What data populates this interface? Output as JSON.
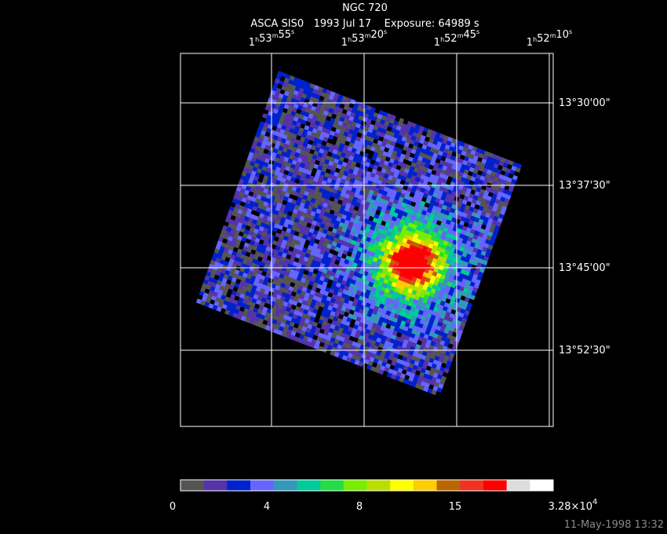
{
  "header": {
    "title": "NGC 720",
    "subtitle": "ASCA SIS0   1993 Jul 17    Exposure: 64989 s"
  },
  "ra_units": [
    "h",
    "m",
    "s"
  ],
  "ra_labels": [
    [
      "1",
      "53",
      "55"
    ],
    [
      "1",
      "53",
      "20"
    ],
    [
      "1",
      "52",
      "45"
    ],
    [
      "1",
      "52",
      "10"
    ]
  ],
  "dec_labels": [
    "13°30'00\"",
    "13°37'30\"",
    "13°45'00\"",
    "13°52'30\""
  ],
  "colorbar": {
    "colors": [
      "#555555",
      "#5533aa",
      "#0022cc",
      "#6666ff",
      "#3399bb",
      "#00cc99",
      "#22dd44",
      "#77ee00",
      "#bbdd00",
      "#ffff00",
      "#ffcc00",
      "#bb6600",
      "#ee3322",
      "#ff0000",
      "#dddddd",
      "#ffffff"
    ],
    "labels": [
      "0",
      "4",
      "8",
      "15"
    ],
    "max_label": {
      "mantissa": "3.28×10",
      "exponent": "4"
    }
  },
  "footer": "11-May-1998 13:32"
}
